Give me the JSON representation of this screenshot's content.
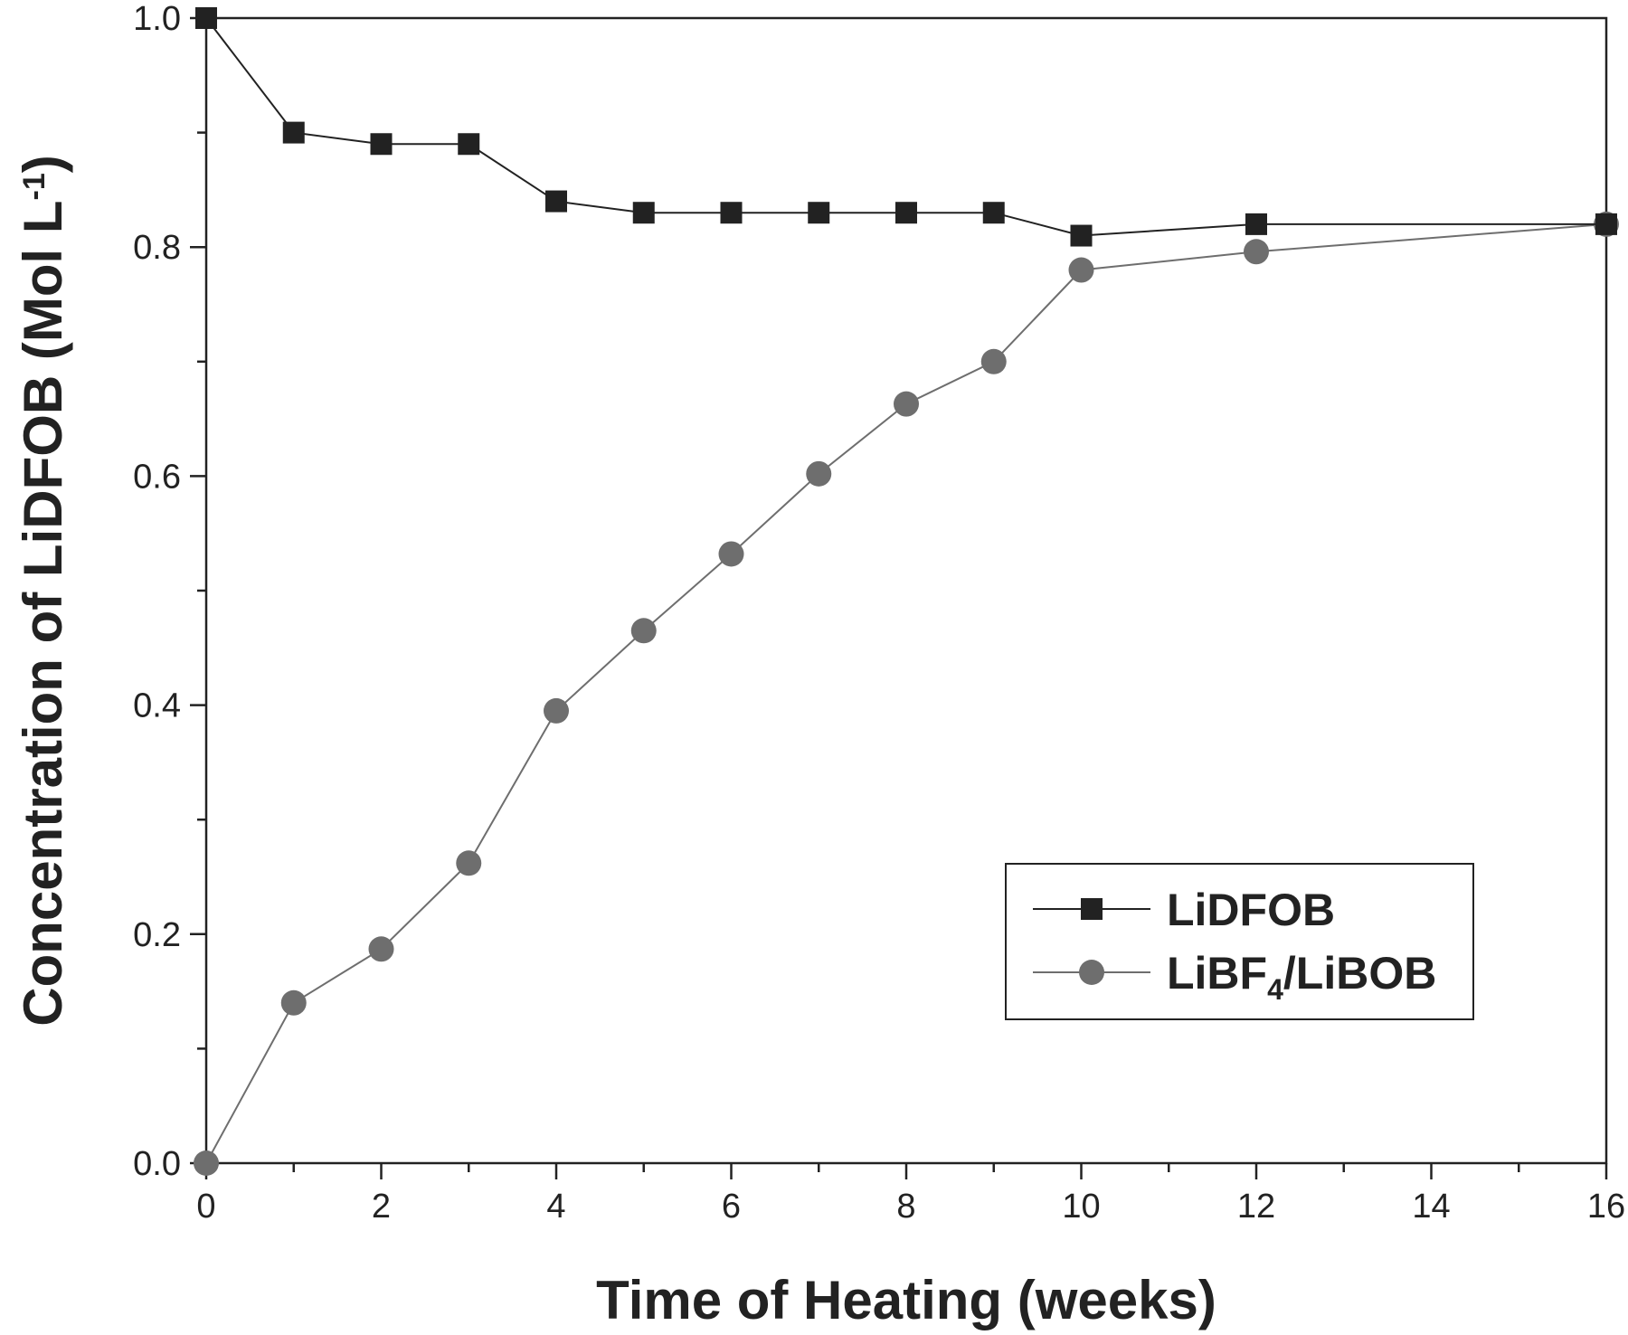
{
  "chart_data": {
    "type": "line",
    "title": "",
    "xlabel": "Time of Heating (weeks)",
    "ylabel": {
      "main": "Concentration of LiDFOB (Mol L",
      "sup": "-1",
      "close": ")"
    },
    "xlim": [
      0,
      16
    ],
    "ylim": [
      0,
      1.0
    ],
    "xticks": [
      0,
      2,
      4,
      6,
      8,
      10,
      12,
      14,
      16
    ],
    "xtick_labels": [
      "0",
      "2",
      "4",
      "6",
      "8",
      "10",
      "12",
      "14",
      "16"
    ],
    "yticks": [
      0,
      0.2,
      0.4,
      0.6,
      0.8,
      1.0
    ],
    "ytick_labels": [
      "0.0",
      "0.2",
      "0.4",
      "0.6",
      "0.8",
      "1.0"
    ],
    "grid": false,
    "legend_position": "lower-right",
    "series": [
      {
        "name": "LiDFOB",
        "legend_main": "LiDFOB",
        "marker": "square",
        "color": "#222222",
        "x": [
          0,
          1,
          2,
          3,
          4,
          5,
          6,
          7,
          8,
          9,
          10,
          12,
          16
        ],
        "y": [
          1.0,
          0.9,
          0.89,
          0.89,
          0.84,
          0.83,
          0.83,
          0.83,
          0.83,
          0.83,
          0.81,
          0.82,
          0.82
        ]
      },
      {
        "name": "LiBF4/LiBOB",
        "legend_main": "LiBF",
        "legend_sub": "4",
        "legend_rest": "/LiBOB",
        "marker": "circle",
        "color": "#6e6e6e",
        "x": [
          0,
          1,
          2,
          3,
          4,
          5,
          6,
          7,
          8,
          9,
          10,
          12,
          16
        ],
        "y": [
          0.0,
          0.14,
          0.187,
          0.262,
          0.395,
          0.465,
          0.532,
          0.602,
          0.663,
          0.7,
          0.78,
          0.796,
          0.82
        ]
      }
    ]
  }
}
